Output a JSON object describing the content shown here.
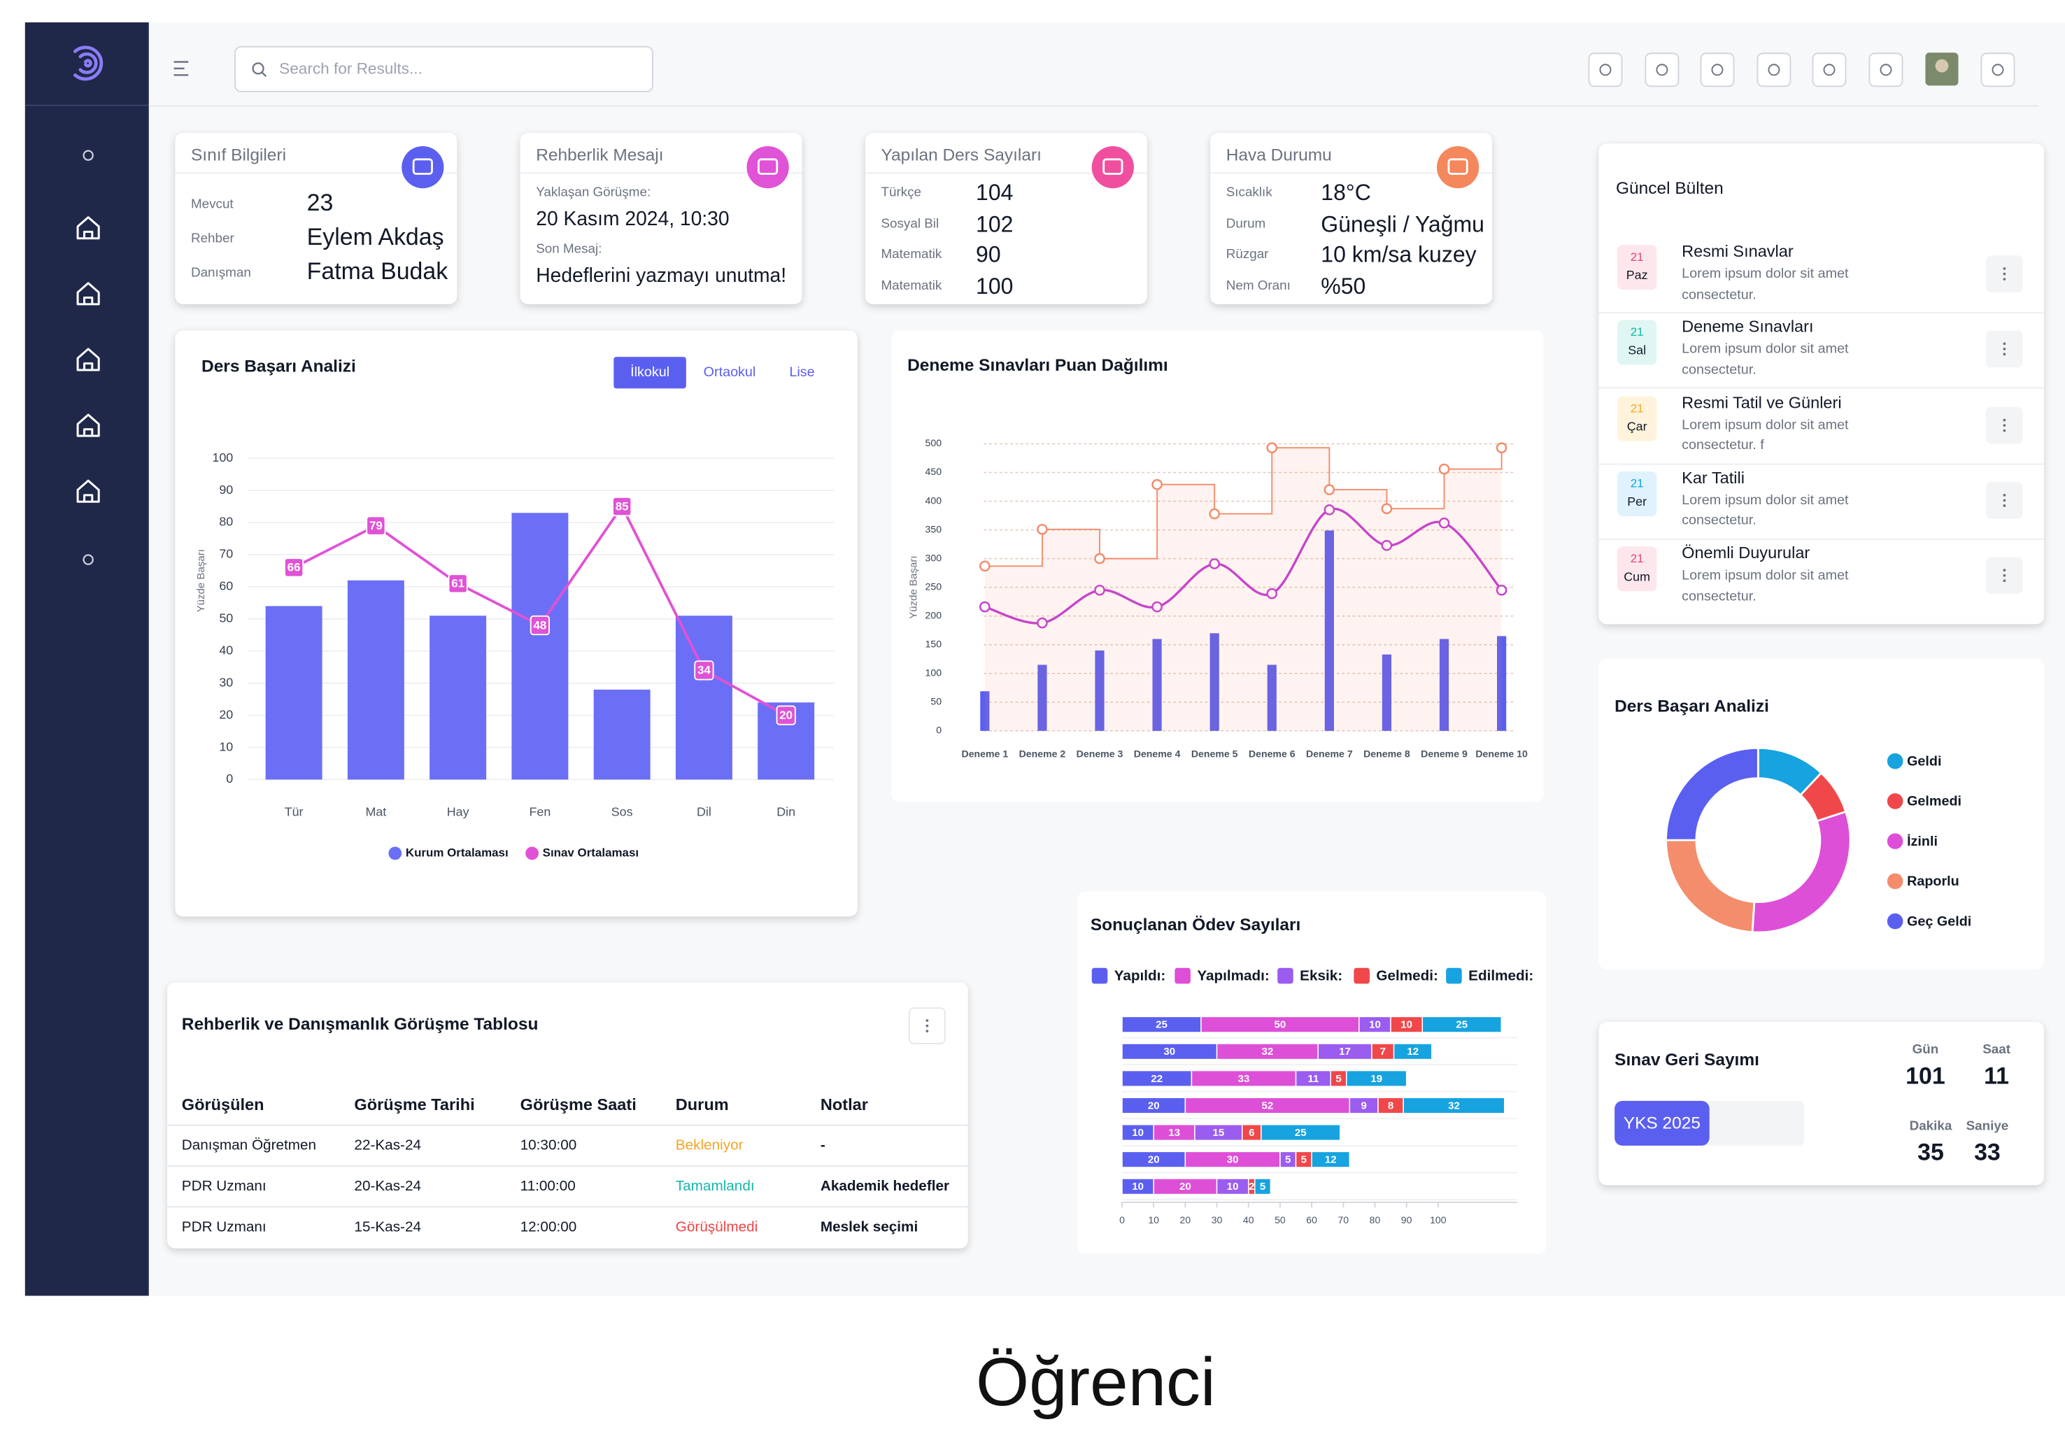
{
  "header": {
    "search_placeholder": "Search for Results..."
  },
  "info_cards": [
    {
      "title": "Sınıf Bilgileri",
      "rows": [
        {
          "label": "Mevcut",
          "value": "23"
        },
        {
          "label": "Rehber",
          "value": "Eylem Akdaş"
        },
        {
          "label": "Danışman",
          "value": "Fatma Budak"
        }
      ]
    },
    {
      "title": "Rehberlik Mesajı",
      "rows": [
        {
          "label": "Yaklaşan Görüşme:",
          "value": "20 Kasım 2024, 10:30"
        },
        {
          "label": "Son Mesaj:",
          "value": "Hedeflerini yazmayı unutma!"
        }
      ]
    },
    {
      "title": "Yapılan Ders Sayıları",
      "rows": [
        {
          "label": "Türkçe",
          "value": "104"
        },
        {
          "label": "Sosyal Bil",
          "value": "102"
        },
        {
          "label": "Matematik",
          "value": "90"
        },
        {
          "label": "Matematik",
          "value": "100"
        }
      ]
    },
    {
      "title": "Hava Durumu",
      "rows": [
        {
          "label": "Sıcaklık",
          "value": "18°C"
        },
        {
          "label": "Durum",
          "value": "Güneşli / Yağmurlu"
        },
        {
          "label": "Rüzgar",
          "value": "10 km/sa kuzey"
        },
        {
          "label": "Nem Oranı",
          "value": "%50"
        }
      ]
    }
  ],
  "chart_data": [
    {
      "type": "combo",
      "title": "Ders Başarı Analizi",
      "tabs": [
        "İlkokul",
        "Ortaokul",
        "Lise"
      ],
      "ylabel": "Yüzde Başarı",
      "categories": [
        "Tür",
        "Mat",
        "Hay",
        "Fen",
        "Sos",
        "Dil",
        "Din"
      ],
      "series": [
        {
          "name": "Kurum Ortalaması",
          "type": "bar",
          "color": "#6b6ff5",
          "values": [
            54,
            62,
            51,
            83,
            28,
            51,
            24
          ]
        },
        {
          "name": "Sınav Ortalaması",
          "type": "line",
          "color": "#e052d6",
          "values": [
            66,
            79,
            61,
            48,
            85,
            34,
            20
          ]
        }
      ],
      "ylim": [
        0,
        100
      ],
      "yticks": [
        0,
        10,
        20,
        30,
        40,
        50,
        60,
        70,
        80,
        90,
        100
      ],
      "grid": true,
      "legend": "bottom"
    },
    {
      "type": "combo",
      "title": "Deneme Sınavları Puan Dağılımı",
      "ylabel": "Yüzde Başarı",
      "categories": [
        "Deneme 1",
        "Deneme 2",
        "Deneme 3",
        "Deneme 4",
        "Deneme 5",
        "Deneme 6",
        "Deneme 7",
        "Deneme 8",
        "Deneme 9",
        "Deneme 10"
      ],
      "series": [
        {
          "type": "bar",
          "color": "#5b5ff0",
          "values": [
            69,
            115,
            140,
            160,
            170,
            115,
            349,
            133,
            160,
            165
          ]
        },
        {
          "type": "spline",
          "color": "#c13fd6",
          "values": [
            216,
            188,
            245,
            216,
            291,
            239,
            385,
            323,
            362,
            245
          ]
        },
        {
          "type": "step",
          "color": "#f28b6a",
          "values": [
            287,
            351,
            300,
            429,
            378,
            493,
            420,
            387,
            456,
            493
          ]
        }
      ],
      "ylim": [
        0,
        500
      ],
      "yticks": [
        0,
        50,
        100,
        150,
        200,
        250,
        300,
        350,
        400,
        450,
        500
      ],
      "grid": true
    },
    {
      "type": "stacked_bar",
      "orientation": "horizontal",
      "title": "Sonuçlanan Ödev Sayıları",
      "series": [
        {
          "name": "Yapıldı:",
          "color": "#5b5ff0",
          "values": [
            25,
            30,
            22,
            20,
            10,
            20,
            10
          ]
        },
        {
          "name": "Yapılmadı:",
          "color": "#de4fd8",
          "values": [
            50,
            32,
            33,
            52,
            13,
            30,
            20
          ]
        },
        {
          "name": "Eksik:",
          "color": "#9b5cf0",
          "values": [
            10,
            17,
            11,
            9,
            15,
            5,
            10
          ]
        },
        {
          "name": "Gelmedi:",
          "color": "#f0474a",
          "values": [
            10,
            7,
            5,
            8,
            6,
            5,
            2
          ]
        },
        {
          "name": "Edilmedi:",
          "color": "#16a3e0",
          "values": [
            25,
            12,
            19,
            32,
            25,
            12,
            5
          ]
        }
      ],
      "xlim": [
        0,
        125
      ],
      "xticks": [
        0,
        10,
        20,
        30,
        40,
        50,
        60,
        70,
        80,
        90,
        100
      ],
      "legend": "top"
    },
    {
      "type": "donut",
      "title": "Ders Başarı Analizi",
      "categories": [
        "Geldi",
        "Gelmedi",
        "İzinli",
        "Raporlu",
        "Geç Geldi"
      ],
      "values": [
        12,
        8,
        31,
        24,
        25
      ],
      "colors": [
        "#16a3e0",
        "#f0474a",
        "#de4fd8",
        "#f48d6b",
        "#5b5ff0"
      ],
      "legend": "right"
    }
  ],
  "bulletin": {
    "title": "Güncel Bülten",
    "items": [
      {
        "day": "21",
        "weekday": "Paz",
        "title": "Resmi Sınavlar",
        "text": "Lorem ipsum dolor sit amet consectetur."
      },
      {
        "day": "21",
        "weekday": "Sal",
        "title": "Deneme Sınavları",
        "text": "Lorem ipsum dolor sit amet consectetur."
      },
      {
        "day": "21",
        "weekday": "Çar",
        "title": "Resmi Tatil ve Günleri",
        "text": "Lorem ipsum dolor sit amet consectetur. f"
      },
      {
        "day": "21",
        "weekday": "Per",
        "title": "Kar Tatili",
        "text": "Lorem ipsum dolor sit amet consectetur."
      },
      {
        "day": "21",
        "weekday": "Cum",
        "title": "Önemli Duyurular",
        "text": "Lorem ipsum dolor sit amet consectetur."
      }
    ]
  },
  "table": {
    "title": "Rehberlik ve Danışmanlık Görüşme Tablosu",
    "columns": [
      "Görüşülen",
      "Görüşme Tarihi",
      "Görüşme Saati",
      "Durum",
      "Notlar"
    ],
    "rows": [
      [
        "Danışman Öğretmen",
        "22-Kas-24",
        "10:30:00",
        "Bekleniyor",
        "-"
      ],
      [
        "PDR Uzmanı",
        "20-Kas-24",
        "11:00:00",
        "Tamamlandı",
        "Akademik hedefler"
      ],
      [
        "PDR Uzmanı",
        "15-Kas-24",
        "12:00:00",
        "Görüşülmedi",
        "Meslek seçimi"
      ]
    ]
  },
  "countdown": {
    "title": "Sınav Geri Sayımı",
    "exam": "YKS 2025",
    "units": [
      {
        "label": "Gün",
        "value": "101"
      },
      {
        "label": "Saat",
        "value": "11"
      },
      {
        "label": "Dakika",
        "value": "35"
      },
      {
        "label": "Saniye",
        "value": "33"
      }
    ]
  },
  "caption": "Öğrenci"
}
